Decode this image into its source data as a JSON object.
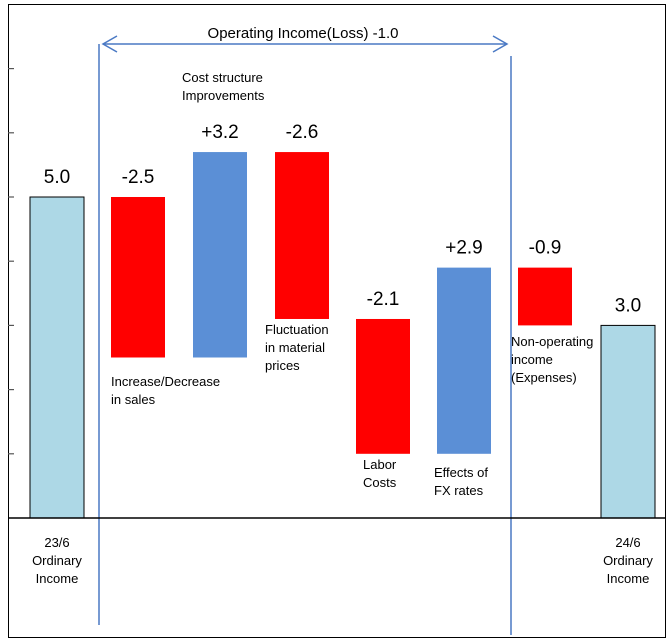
{
  "chart_data": {
    "type": "bar",
    "subtype": "waterfall",
    "y_range": [
      0,
      5.5
    ],
    "baseline": 0,
    "colors": {
      "endpoint": "#add8e6",
      "decrease": "#ff0000",
      "increase": "#5b8fd6",
      "endpoint_stroke": "#000000",
      "axis": "#000000",
      "bracket": "#4a79c4"
    },
    "bars": [
      {
        "id": "start",
        "kind": "endpoint",
        "base": 0,
        "top": 5.0,
        "value_label": "5.0",
        "category_lines": [
          "23/6",
          "Ordinary",
          "Income"
        ],
        "note_lines": []
      },
      {
        "id": "sales",
        "kind": "decrease",
        "base": 2.5,
        "top": 5.0,
        "value_label": "-2.5",
        "category_lines": [],
        "note_lines": [
          "Increase/Decrease",
          "in sales"
        ]
      },
      {
        "id": "cost-structure",
        "kind": "increase",
        "base": 2.5,
        "top": 5.7,
        "value_label": "+3.2",
        "category_lines": [],
        "note_lines": [
          "Cost structure",
          "Improvements"
        ]
      },
      {
        "id": "material",
        "kind": "decrease",
        "base": 3.1,
        "top": 5.7,
        "value_label": "-2.6",
        "category_lines": [],
        "note_lines": [
          "Fluctuation",
          "in material",
          "prices"
        ]
      },
      {
        "id": "labor",
        "kind": "decrease",
        "base": 1.0,
        "top": 3.1,
        "value_label": "-2.1",
        "category_lines": [],
        "note_lines": [
          "Labor",
          "Costs"
        ]
      },
      {
        "id": "fx",
        "kind": "increase",
        "base": 1.0,
        "top": 3.9,
        "value_label": "+2.9",
        "category_lines": [],
        "note_lines": [
          "Effects of",
          "FX rates"
        ]
      },
      {
        "id": "non-operating",
        "kind": "decrease",
        "base": 3.0,
        "top": 3.9,
        "value_label": "-0.9",
        "category_lines": [],
        "note_lines": [
          "Non-operating",
          "income",
          "(Expenses)"
        ]
      },
      {
        "id": "end",
        "kind": "endpoint",
        "base": 0,
        "top": 3.0,
        "value_label": "3.0",
        "category_lines": [
          "24/6",
          "Ordinary",
          "Income"
        ],
        "note_lines": []
      }
    ],
    "bracket": {
      "label": "Operating Income(Loss) -1.0",
      "from_bar": "sales",
      "to_bar": "fx"
    }
  }
}
